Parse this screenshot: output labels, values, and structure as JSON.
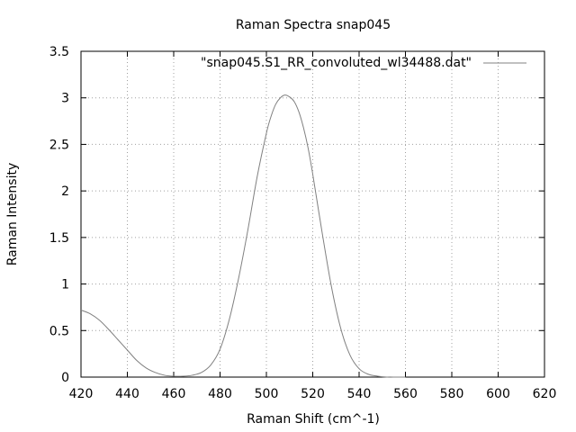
{
  "chart_data": {
    "type": "line",
    "title": "Raman Spectra snap045",
    "xlabel": "Raman Shift (cm^-1)",
    "ylabel": "Raman Intensity",
    "xlim": [
      420,
      620
    ],
    "ylim": [
      0,
      3.5
    ],
    "xticks": [
      "420",
      "440",
      "460",
      "480",
      "500",
      "520",
      "540",
      "560",
      "580",
      "600",
      "620"
    ],
    "yticks": [
      "0",
      "0.5",
      "1",
      "1.5",
      "2",
      "2.5",
      "3",
      "3.5"
    ],
    "grid": true,
    "legend_position": "top-right",
    "series": [
      {
        "name": "\"snap045.S1_RR_convoluted_wl34488.dat\"",
        "color": "#808080",
        "x": [
          420,
          424,
          428,
          432,
          436,
          440,
          444,
          448,
          452,
          456,
          460,
          464,
          468,
          472,
          476,
          480,
          484,
          488,
          492,
          496,
          500,
          502,
          504,
          506,
          508,
          510,
          512,
          514,
          516,
          518,
          520,
          524,
          528,
          532,
          536,
          540,
          544,
          548,
          552,
          556,
          560
        ],
        "y": [
          0.72,
          0.68,
          0.61,
          0.51,
          0.4,
          0.29,
          0.18,
          0.1,
          0.05,
          0.02,
          0.01,
          0.01,
          0.02,
          0.05,
          0.13,
          0.3,
          0.62,
          1.06,
          1.58,
          2.15,
          2.62,
          2.8,
          2.93,
          3.0,
          3.03,
          3.01,
          2.96,
          2.85,
          2.68,
          2.46,
          2.18,
          1.56,
          0.98,
          0.53,
          0.24,
          0.09,
          0.03,
          0.01,
          0.0,
          0.0,
          0.0
        ]
      }
    ]
  }
}
